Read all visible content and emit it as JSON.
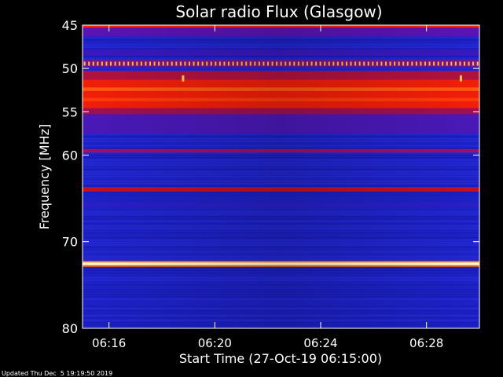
{
  "chart_data": {
    "type": "heatmap",
    "title": "Solar radio Flux (Glasgow)",
    "xlabel": "Start Time (27-Oct-19 06:15:00)",
    "ylabel": "Frequency [MHz]",
    "footer": "Updated Thu Dec  5 19:19:50 2019",
    "x_range_minutes": [
      0,
      15
    ],
    "x_ticks": [
      {
        "label": "06:16",
        "minute": 1
      },
      {
        "label": "06:20",
        "minute": 5
      },
      {
        "label": "06:24",
        "minute": 9
      },
      {
        "label": "06:28",
        "minute": 13
      }
    ],
    "y_range_mhz": [
      45,
      80
    ],
    "y_ticks": [
      {
        "label": "45",
        "mhz": 45
      },
      {
        "label": "50",
        "mhz": 50
      },
      {
        "label": "55",
        "mhz": 55
      },
      {
        "label": "60",
        "mhz": 60
      },
      {
        "label": "70",
        "mhz": 70
      },
      {
        "label": "80",
        "mhz": 80
      }
    ],
    "background_color": "#1e22c8",
    "bands": [
      {
        "mhz_from": 45.0,
        "mhz_to": 45.3,
        "color": "#ff2010"
      },
      {
        "mhz_from": 45.3,
        "mhz_to": 46.3,
        "color": "#5a14b4"
      },
      {
        "mhz_from": 47.8,
        "mhz_to": 48.5,
        "color": "#3a18c0"
      },
      {
        "mhz_from": 49.0,
        "mhz_to": 49.8,
        "color": "#7a1490"
      },
      {
        "mhz_from": 50.3,
        "mhz_to": 51.3,
        "color": "#b01240"
      },
      {
        "mhz_from": 51.3,
        "mhz_to": 54.6,
        "color": "#f21e08"
      },
      {
        "mhz_from": 52.2,
        "mhz_to": 52.6,
        "color": "#ff5a10"
      },
      {
        "mhz_from": 53.4,
        "mhz_to": 53.8,
        "color": "#ff3a0a"
      },
      {
        "mhz_from": 54.6,
        "mhz_to": 55.3,
        "color": "#a01050"
      },
      {
        "mhz_from": 55.3,
        "mhz_to": 57.5,
        "color": "#4a18b8"
      },
      {
        "mhz_from": 59.3,
        "mhz_to": 59.7,
        "color": "#a21060"
      },
      {
        "mhz_from": 63.7,
        "mhz_to": 64.2,
        "color": "#c8101c"
      },
      {
        "mhz_from": 65.5,
        "mhz_to": 66.0,
        "color": "#2a1ec8"
      },
      {
        "mhz_from": 72.2,
        "mhz_to": 72.9,
        "color": "#ff6a00"
      },
      {
        "mhz_from": 72.4,
        "mhz_to": 72.7,
        "color": "#ffffd8"
      }
    ],
    "dotted_line": {
      "mhz": 49.45,
      "color": "#ffc040",
      "spacing_minutes": 0.165
    },
    "spikes": [
      {
        "minute": 3.8,
        "mhz_from": 50.8,
        "mhz_to": 51.5,
        "color": "#ffd040"
      },
      {
        "minute": 14.3,
        "mhz_from": 50.8,
        "mhz_to": 51.5,
        "color": "#ffd040"
      }
    ]
  }
}
